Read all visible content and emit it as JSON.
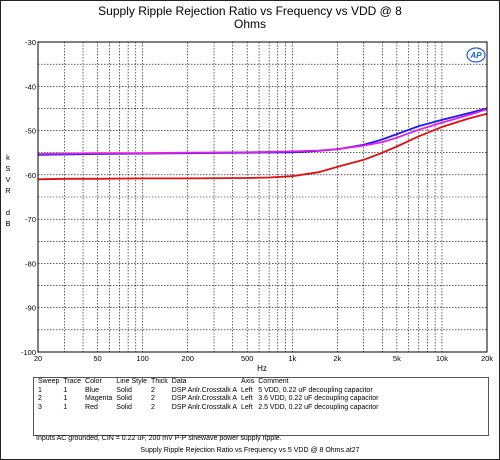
{
  "header": {
    "title_line1": "Supply Ripple Rejection Ratio vs Frequency vs VDD @ 8",
    "title_line2": "Ohms"
  },
  "logo_text": "AP",
  "chart_data": {
    "type": "line",
    "title": "Supply Ripple Rejection Ratio vs Frequency vs VDD @ 8 Ohms",
    "xlabel": "Hz",
    "ylabel_chars": [
      "k",
      "S",
      "V",
      "R",
      "",
      "d",
      "B"
    ],
    "xscale": "log",
    "xlim": [
      20,
      20000
    ],
    "ylim": [
      -100,
      -30
    ],
    "grid": true,
    "x_ticks": [
      {
        "value": 20,
        "label": "20"
      },
      {
        "value": 50,
        "label": "50"
      },
      {
        "value": 100,
        "label": "100"
      },
      {
        "value": 200,
        "label": "200"
      },
      {
        "value": 500,
        "label": "500"
      },
      {
        "value": 1000,
        "label": "1k"
      },
      {
        "value": 2000,
        "label": "2k"
      },
      {
        "value": 5000,
        "label": "5k"
      },
      {
        "value": 10000,
        "label": "10k"
      },
      {
        "value": 20000,
        "label": "20k"
      }
    ],
    "y_ticks": [
      {
        "value": -30,
        "label": "-30"
      },
      {
        "value": -40,
        "label": "-40"
      },
      {
        "value": -50,
        "label": "-50"
      },
      {
        "value": -60,
        "label": "-60"
      },
      {
        "value": -70,
        "label": "-70"
      },
      {
        "value": -80,
        "label": "-80"
      },
      {
        "value": -90,
        "label": "-90"
      },
      {
        "value": -100,
        "label": "-100"
      }
    ],
    "series": [
      {
        "color": "#1a1aff",
        "x": [
          20,
          30,
          50,
          100,
          200,
          500,
          1000,
          1500,
          2000,
          3000,
          4000,
          5000,
          7000,
          10000,
          15000,
          20000
        ],
        "y": [
          -55.5,
          -55.4,
          -55.3,
          -55.2,
          -55.1,
          -55.0,
          -54.9,
          -54.6,
          -54.2,
          -53.2,
          -52.0,
          -50.8,
          -49.0,
          -47.6,
          -46.1,
          -45.0
        ]
      },
      {
        "color": "#e020e0",
        "x": [
          20,
          30,
          50,
          100,
          200,
          500,
          1000,
          1500,
          2000,
          3000,
          4000,
          5000,
          7000,
          10000,
          15000,
          20000
        ],
        "y": [
          -55.3,
          -55.2,
          -55.1,
          -55.1,
          -55.0,
          -54.9,
          -54.7,
          -54.5,
          -54.2,
          -53.4,
          -52.6,
          -51.6,
          -49.8,
          -48.2,
          -46.5,
          -45.2
        ]
      },
      {
        "color": "#e01010",
        "x": [
          20,
          30,
          50,
          100,
          200,
          500,
          700,
          1000,
          1500,
          2000,
          3000,
          4000,
          5000,
          7000,
          10000,
          15000,
          20000
        ],
        "y": [
          -61.0,
          -60.9,
          -60.9,
          -60.8,
          -60.8,
          -60.7,
          -60.6,
          -60.3,
          -59.4,
          -58.2,
          -56.6,
          -55.0,
          -53.6,
          -51.3,
          -49.2,
          -47.3,
          -46.2
        ]
      }
    ]
  },
  "legend": {
    "headers": [
      "Sweep",
      "Trace",
      "Color",
      "Line Style",
      "Thick",
      "Data",
      "Axis",
      "Comment"
    ],
    "rows": [
      [
        "1",
        "1",
        "Blue",
        "Solid",
        "2",
        "DSP Anlr.Crosstalk A",
        "Left",
        "5 VDD, 0.22 uF decoupling capacitor"
      ],
      [
        "2",
        "1",
        "Magenta",
        "Solid",
        "2",
        "DSP Anlr.Crosstalk A",
        "Left",
        "3.6 VDD, 0.22 uF decoupling capacitor"
      ],
      [
        "3",
        "1",
        "Red",
        "Solid",
        "2",
        "DSP Anlr.Crosstalk A",
        "Left",
        "2.5 VDD, 0.22 uF decoupling capacitor"
      ]
    ]
  },
  "note": "Inputs AC grounded, CIN = 0.22 uF, 200 mV P-P sinewave power supply ripple.",
  "footer": "Supply Ripple Rejection Ratio vs Frequency vs 5 VDD @ 8 Ohms.at27"
}
